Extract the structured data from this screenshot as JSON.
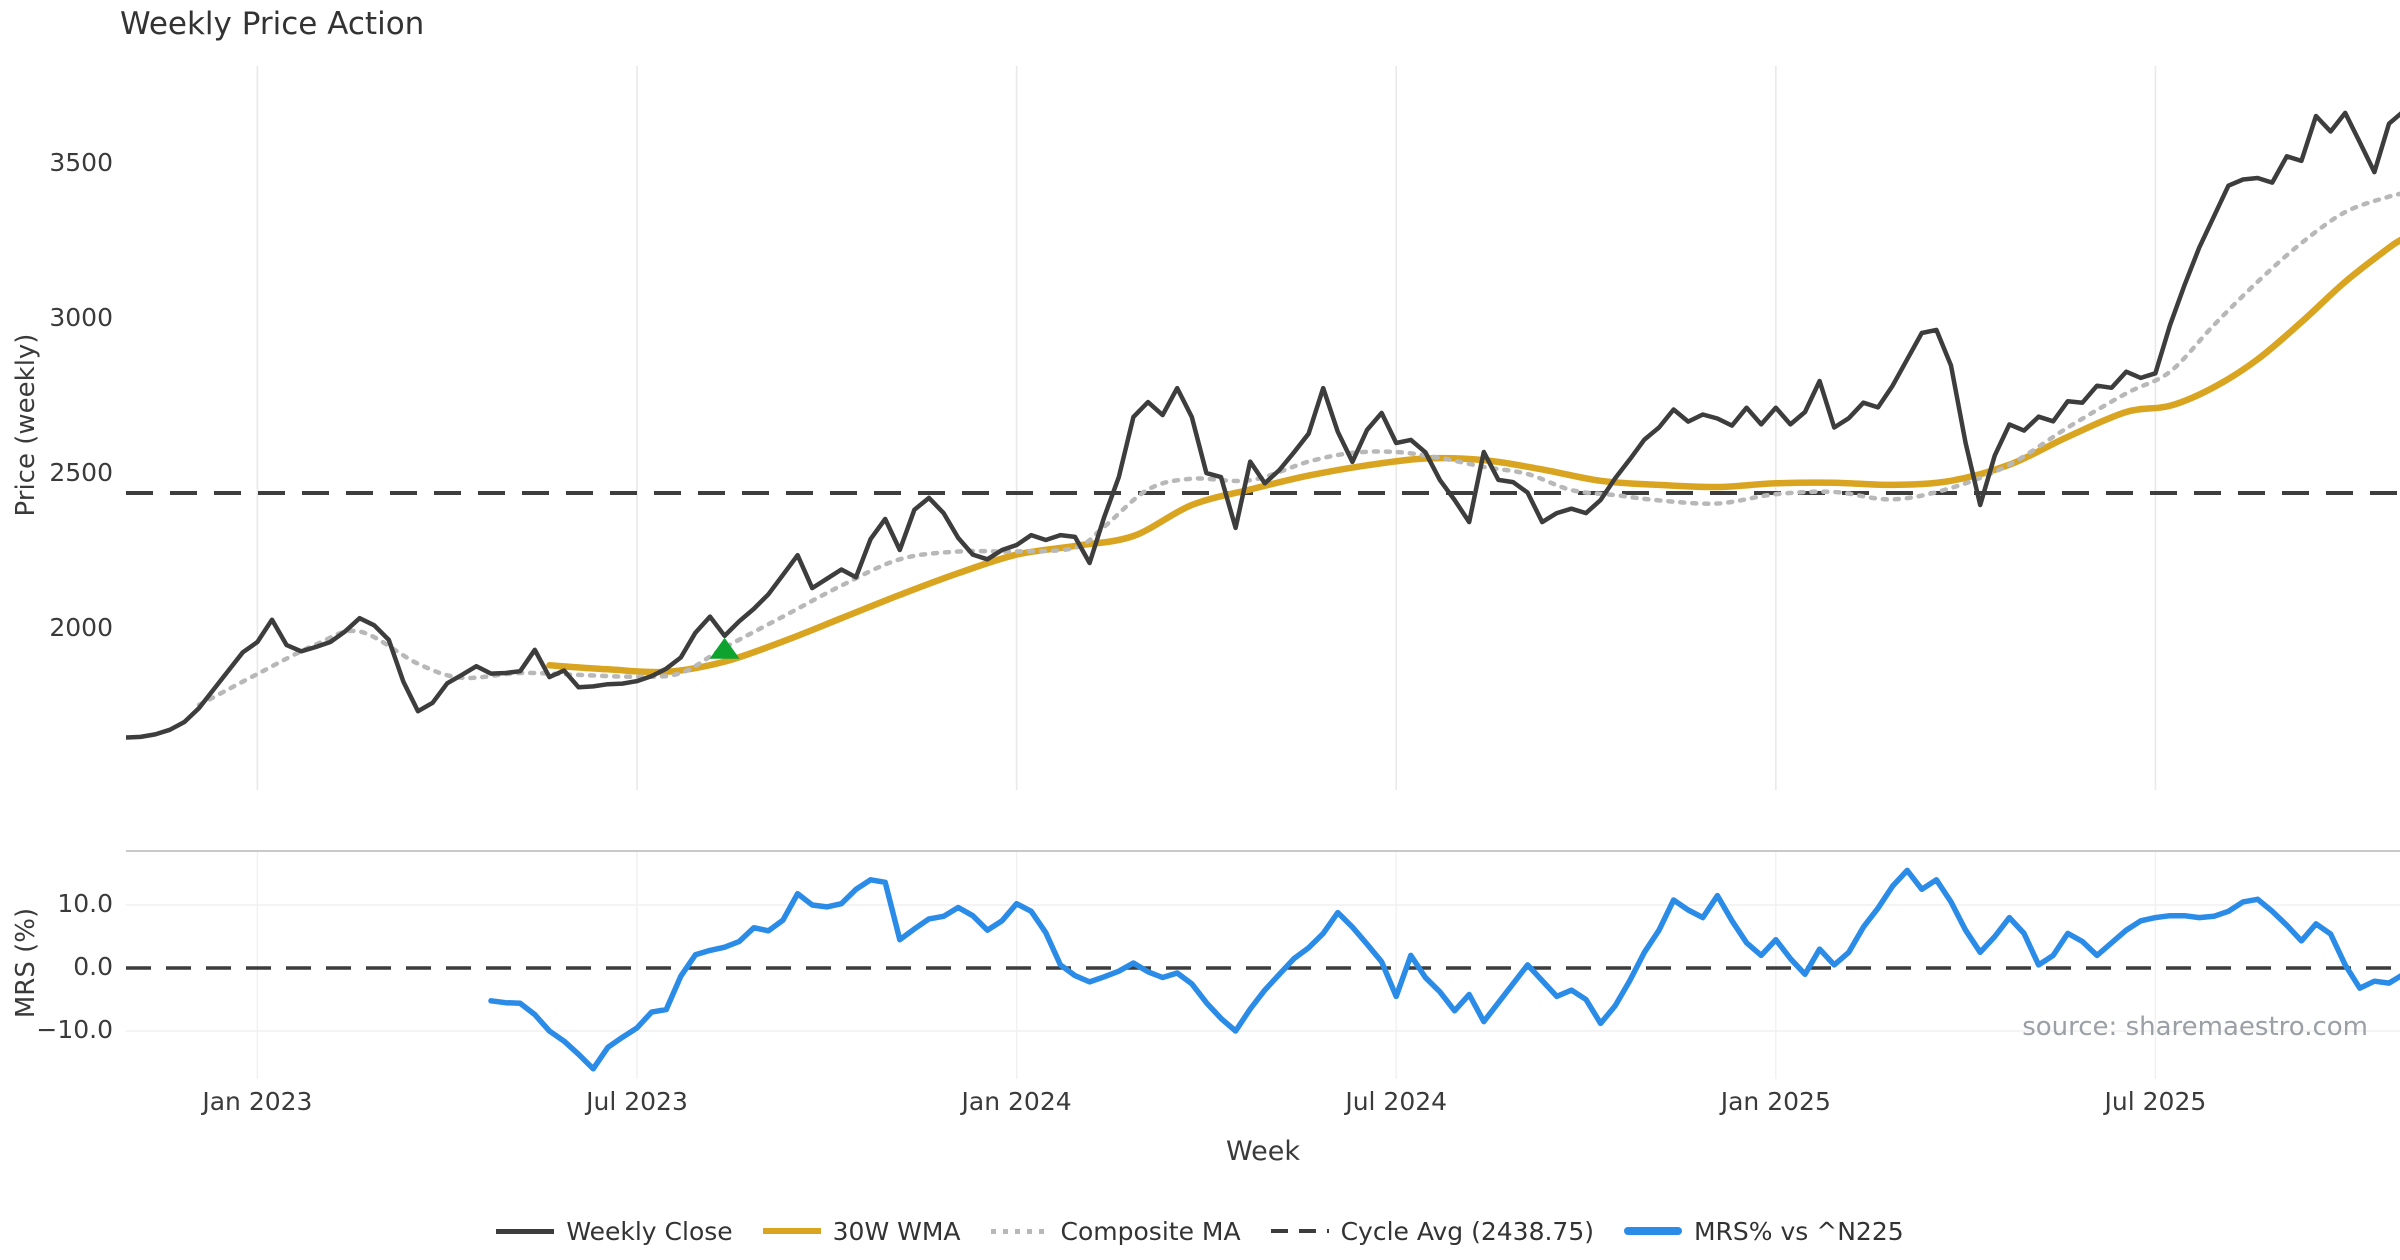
{
  "title": "Weekly Price Action",
  "source_note": "source: sharemaestro.com",
  "price_axis": {
    "label": "Price (weekly)",
    "ticks": [
      3500,
      3000,
      2500,
      2000
    ]
  },
  "mrs_axis": {
    "label": "MRS (%)",
    "ticks": [
      {
        "value": 10,
        "label": "10.0"
      },
      {
        "value": 0,
        "label": "0.0"
      },
      {
        "value": -10,
        "label": "−10.0"
      }
    ]
  },
  "x_axis": {
    "label": "Week",
    "ticks": [
      {
        "week": 9,
        "label": "Jan 2023"
      },
      {
        "week": 35,
        "label": "Jul 2023"
      },
      {
        "week": 61,
        "label": "Jan 2024"
      },
      {
        "week": 87,
        "label": "Jul 2024"
      },
      {
        "week": 113,
        "label": "Jan 2025"
      },
      {
        "week": 139,
        "label": "Jul 2025"
      }
    ]
  },
  "legend": [
    {
      "label": "Weekly Close",
      "color": "#3d3d3d",
      "style": "solid"
    },
    {
      "label": "30W WMA",
      "color": "#d9a521",
      "style": "solid"
    },
    {
      "label": "Composite MA",
      "color": "#b8b8b8",
      "style": "dotted"
    },
    {
      "label": "Cycle Avg (2438.75)",
      "color": "#3d3d3d",
      "style": "dashed"
    },
    {
      "label": "MRS% vs ^N225",
      "color": "#2b8ce8",
      "style": "solid-thick"
    }
  ],
  "colors": {
    "close": "#3d3d3d",
    "wma": "#d9a521",
    "composite": "#b8b8b8",
    "cycle_dash": "#3d3d3d",
    "mrs_line": "#2b8ce8",
    "marker_green": "#0ea32e",
    "grid": "#e9e9e9",
    "grid_faint": "#f0f0f0",
    "panel_border": "#c9c9c9",
    "text": "#3a3a3a",
    "source_text": "#9aa0a6"
  },
  "chart_data": [
    {
      "type": "line",
      "panel": "price",
      "title": "Weekly Price Action",
      "ylabel": "Price (weekly)",
      "ylim": [
        1550,
        3800
      ],
      "yticks": [
        2000,
        2500,
        3000,
        3500
      ],
      "grid": "vertical-only",
      "x_unit": "weekly index, w0 = late Oct 2022",
      "x_ticks": [
        {
          "week": 9,
          "label": "Jan 2023"
        },
        {
          "week": 35,
          "label": "Jul 2023"
        },
        {
          "week": 61,
          "label": "Jan 2024"
        },
        {
          "week": 87,
          "label": "Jul 2024"
        },
        {
          "week": 113,
          "label": "Jan 2025"
        },
        {
          "week": 139,
          "label": "Jul 2025"
        }
      ],
      "series": [
        {
          "name": "Weekly Close",
          "style": "solid",
          "color": "#3d3d3d",
          "start_week": 0,
          "weekly_values": [
            1650,
            1652,
            1660,
            1675,
            1700,
            1745,
            1805,
            1865,
            1925,
            1958,
            2030,
            1948,
            1928,
            1942,
            1958,
            1992,
            2035,
            2012,
            1965,
            1830,
            1735,
            1762,
            1825,
            1852,
            1880,
            1856,
            1858,
            1864,
            1933,
            1845,
            1866,
            1812,
            1815,
            1822,
            1824,
            1832,
            1848,
            1872,
            1908,
            1988,
            2040,
            1978,
            2025,
            2065,
            2112,
            2175,
            2238,
            2132,
            2162,
            2192,
            2167,
            2290,
            2355,
            2255,
            2385,
            2423,
            2374,
            2294,
            2240,
            2225,
            2255,
            2271,
            2303,
            2287,
            2303,
            2297,
            2213,
            2361,
            2490,
            2684,
            2732,
            2690,
            2777,
            2684,
            2503,
            2490,
            2326,
            2540,
            2470,
            2513,
            2570,
            2630,
            2777,
            2636,
            2539,
            2642,
            2697,
            2600,
            2610,
            2570,
            2480,
            2416,
            2345,
            2571,
            2481,
            2474,
            2440,
            2345,
            2374,
            2388,
            2374,
            2416,
            2486,
            2547,
            2611,
            2650,
            2708,
            2669,
            2692,
            2679,
            2656,
            2714,
            2660,
            2714,
            2660,
            2700,
            2800,
            2650,
            2680,
            2730,
            2715,
            2785,
            2870,
            2955,
            2965,
            2850,
            2600,
            2400,
            2560,
            2660,
            2640,
            2685,
            2670,
            2735,
            2730,
            2785,
            2778,
            2830,
            2810,
            2825,
            2980,
            3110,
            3230,
            3330,
            3430,
            3450,
            3455,
            3440,
            3525,
            3510,
            3655,
            3605,
            3665,
            3570,
            3474,
            3630,
            3670
          ]
        },
        {
          "name": "30W WMA",
          "style": "solid",
          "color": "#d9a521",
          "points": [
            [
              29,
              1883
            ],
            [
              33,
              1870
            ],
            [
              37,
              1862
            ],
            [
              41,
              1895
            ],
            [
              45,
              1960
            ],
            [
              49,
              2035
            ],
            [
              53,
              2110
            ],
            [
              57,
              2180
            ],
            [
              61,
              2240
            ],
            [
              65,
              2268
            ],
            [
              69,
              2300
            ],
            [
              73,
              2400
            ],
            [
              77,
              2450
            ],
            [
              81,
              2495
            ],
            [
              85,
              2528
            ],
            [
              89,
              2550
            ],
            [
              93,
              2545
            ],
            [
              97,
              2515
            ],
            [
              101,
              2478
            ],
            [
              105,
              2465
            ],
            [
              109,
              2458
            ],
            [
              113,
              2470
            ],
            [
              117,
              2472
            ],
            [
              121,
              2465
            ],
            [
              125,
              2478
            ],
            [
              129,
              2530
            ],
            [
              133,
              2620
            ],
            [
              137,
              2700
            ],
            [
              140,
              2720
            ],
            [
              143,
              2780
            ],
            [
              146,
              2870
            ],
            [
              149,
              2990
            ],
            [
              152,
              3120
            ],
            [
              155,
              3230
            ],
            [
              156,
              3260
            ]
          ]
        },
        {
          "name": "Composite MA",
          "style": "dotted",
          "color": "#b8b8b8",
          "points": [
            [
              5,
              1755
            ],
            [
              9,
              1855
            ],
            [
              13,
              1950
            ],
            [
              16,
              1992
            ],
            [
              20,
              1888
            ],
            [
              23,
              1843
            ],
            [
              27,
              1858
            ],
            [
              31,
              1852
            ],
            [
              35,
              1846
            ],
            [
              38,
              1858
            ],
            [
              41,
              1940
            ],
            [
              45,
              2040
            ],
            [
              49,
              2140
            ],
            [
              53,
              2225
            ],
            [
              57,
              2250
            ],
            [
              61,
              2250
            ],
            [
              65,
              2262
            ],
            [
              67,
              2330
            ],
            [
              70,
              2450
            ],
            [
              73,
              2485
            ],
            [
              77,
              2480
            ],
            [
              81,
              2540
            ],
            [
              84,
              2568
            ],
            [
              87,
              2571
            ],
            [
              90,
              2552
            ],
            [
              93,
              2523
            ],
            [
              96,
              2500
            ],
            [
              99,
              2448
            ],
            [
              102,
              2432
            ],
            [
              105,
              2415
            ],
            [
              109,
              2405
            ],
            [
              113,
              2435
            ],
            [
              117,
              2442
            ],
            [
              121,
              2418
            ],
            [
              125,
              2455
            ],
            [
              129,
              2530
            ],
            [
              133,
              2650
            ],
            [
              137,
              2760
            ],
            [
              140,
              2830
            ],
            [
              143,
              2980
            ],
            [
              146,
              3120
            ],
            [
              149,
              3245
            ],
            [
              152,
              3345
            ],
            [
              155,
              3395
            ],
            [
              156,
              3405
            ]
          ]
        },
        {
          "name": "Cycle Avg",
          "style": "dashed",
          "color": "#3d3d3d",
          "hline_value": 2438.75
        }
      ],
      "markers": [
        {
          "name": "green-triangle-marker",
          "shape": "triangle-up",
          "color": "#0ea32e",
          "week": 41,
          "price": 1930
        }
      ]
    },
    {
      "type": "line",
      "panel": "mrs",
      "ylabel": "MRS (%)",
      "ylim": [
        -17.5,
        18.5
      ],
      "yticks": [
        {
          "value": 10,
          "label": "10.0"
        },
        {
          "value": 0,
          "label": "0.0"
        },
        {
          "value": -10,
          "label": "−10.0"
        }
      ],
      "grid": "horizontal-and-vertical-faint",
      "series": [
        {
          "name": "MRS% vs ^N225",
          "style": "solid",
          "color": "#2b8ce8",
          "start_week": 25,
          "weekly_values": [
            -5.2,
            -5.5,
            -5.6,
            -7.4,
            -10.0,
            -11.6,
            -13.7,
            -16.0,
            -12.6,
            -11.0,
            -9.5,
            -7.0,
            -6.6,
            -1.3,
            2.1,
            2.8,
            3.3,
            4.2,
            6.4,
            5.9,
            7.6,
            11.8,
            10.0,
            9.7,
            10.2,
            12.5,
            14.0,
            13.6,
            4.5,
            6.2,
            7.8,
            8.2,
            9.6,
            8.3,
            6.0,
            7.5,
            10.2,
            9.0,
            5.6,
            0.5,
            -1.2,
            -2.2,
            -1.4,
            -0.5,
            0.8,
            -0.6,
            -1.5,
            -0.8,
            -2.5,
            -5.5,
            -8.0,
            -10.0,
            -6.5,
            -3.5,
            -1.0,
            1.5,
            3.2,
            5.5,
            8.8,
            6.5,
            3.8,
            1.0,
            -4.5,
            2.0,
            -1.5,
            -3.8,
            -6.8,
            -4.2,
            -8.5,
            -5.5,
            -2.5,
            0.5,
            -2.0,
            -4.5,
            -3.5,
            -5.0,
            -8.8,
            -6.0,
            -2.0,
            2.5,
            6.0,
            10.8,
            9.2,
            8.0,
            11.5,
            7.5,
            4.0,
            2.0,
            4.5,
            1.5,
            -1.0,
            3.0,
            0.5,
            2.5,
            6.5,
            9.5,
            13.0,
            15.5,
            12.5,
            14.0,
            10.5,
            6.0,
            2.5,
            5.0,
            8.0,
            5.5,
            0.5,
            2.0,
            5.5,
            4.2,
            2.0,
            4.0,
            6.0,
            7.5,
            8.0,
            8.3,
            8.3,
            8.0,
            8.2,
            9.0,
            10.5,
            10.9,
            9.0,
            6.8,
            4.3,
            7.0,
            5.4,
            0.5,
            -3.2,
            -2.1,
            -2.4,
            -1.0
          ]
        },
        {
          "name": "Zero line",
          "style": "dashed",
          "color": "#3d3d3d",
          "hline_value": 0
        }
      ]
    }
  ]
}
